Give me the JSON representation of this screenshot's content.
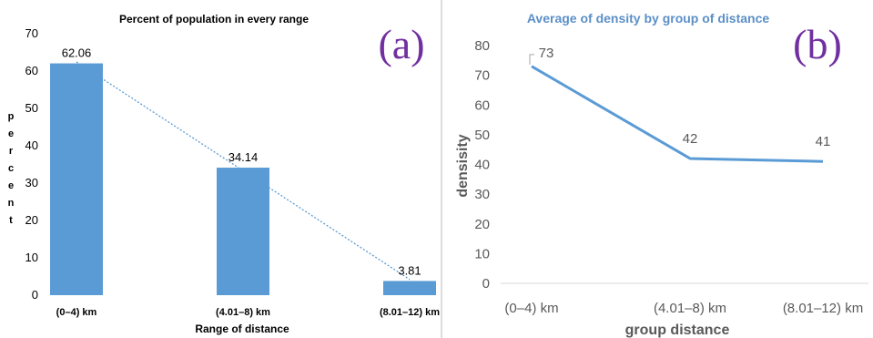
{
  "chart_data": [
    {
      "panel_label": "(a)",
      "type": "bar",
      "title": "Percent of population in every range",
      "xlabel": "Range of distance",
      "ylabel": "percent",
      "categories": [
        "(0–4) km",
        "(4.01–8) km",
        "(8.01–12) km"
      ],
      "values": [
        62.06,
        34.14,
        3.81
      ],
      "data_labels": [
        "62.06",
        "34.14",
        "3.81"
      ],
      "ylim": [
        0,
        70
      ],
      "yticks": [
        "0",
        "10",
        "20",
        "30",
        "40",
        "50",
        "60",
        "70"
      ],
      "trendline": "linear dotted",
      "grid": false,
      "colors": {
        "bar": "#5b9bd5",
        "trendline": "#5b9bd5",
        "label": "#7030a0"
      }
    },
    {
      "panel_label": "(b)",
      "type": "line",
      "title": "Average of density by group of distance",
      "xlabel": "group distance",
      "ylabel": "densisity",
      "categories": [
        "(0–4) km",
        "(4.01–8) km",
        "(8.01–12) km"
      ],
      "values": [
        73,
        42,
        41
      ],
      "data_labels": [
        "73",
        "42",
        "41"
      ],
      "ylim": [
        0,
        80
      ],
      "yticks": [
        "0",
        "10",
        "20",
        "30",
        "40",
        "50",
        "60",
        "70",
        "80"
      ],
      "grid": false,
      "colors": {
        "line": "#5b9bd5",
        "axis_text": "#595959",
        "title": "#5b8fc7",
        "label": "#7030a0"
      }
    }
  ]
}
